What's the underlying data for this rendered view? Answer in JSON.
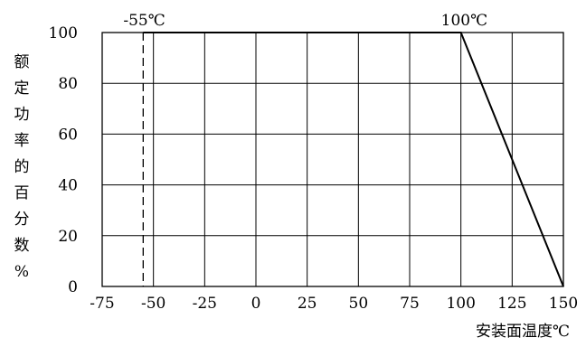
{
  "chart_data": {
    "type": "line",
    "title": "",
    "xlabel": "安装面温度℃",
    "ylabel": "额定功率的百分数%",
    "xlim": [
      -75,
      150
    ],
    "ylim": [
      0,
      100
    ],
    "x_ticks": [
      -75,
      -50,
      -25,
      0,
      25,
      50,
      75,
      100,
      125,
      150
    ],
    "y_ticks": [
      0,
      20,
      40,
      60,
      80,
      100
    ],
    "x_tick_labels": [
      "-75",
      "-50",
      "-25",
      "0",
      "25",
      "50",
      "75",
      "100",
      "125",
      "150"
    ],
    "y_tick_labels": [
      "0",
      "20",
      "40",
      "60",
      "80",
      "100"
    ],
    "grid": true,
    "legend": "none",
    "series": [
      {
        "x": [
          -55,
          100,
          150
        ],
        "y": [
          100,
          100,
          0
        ]
      }
    ],
    "annotations": [
      {
        "text": "-55℃",
        "x": -55,
        "y": 100,
        "style": "dashed-vertical-line"
      },
      {
        "text": "100℃",
        "x": 100,
        "y": 100
      }
    ],
    "colors": {
      "line": "#000000",
      "grid": "#000000",
      "background": "#ffffff"
    }
  }
}
